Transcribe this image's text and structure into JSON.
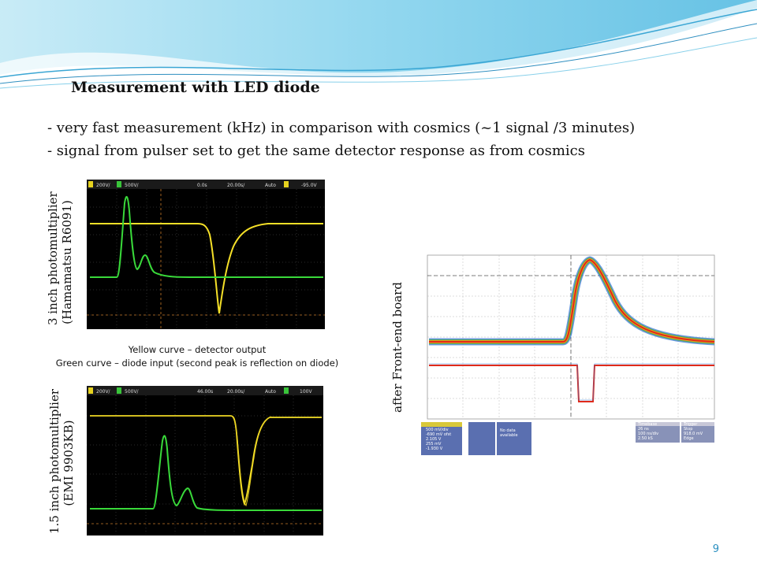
{
  "title": "Measurement with LED diode",
  "bullets": [
    "- very fast measurement (kHz) in comparison with cosmics (~1 signal /3 minutes)",
    "- signal from pulser set to get the same detector response as from cosmics"
  ],
  "scope_top": {
    "label_line1": "3 inch photomultiplier",
    "label_line2": "(Hamamatsu R6091)",
    "status": [
      "200V/",
      "500V/",
      "0.0s",
      "20.00s/",
      "Auto",
      "-95.0V"
    ]
  },
  "scope_bottom": {
    "label_line1": "1.5 inch photomultiplier",
    "label_line2": "(EMI 9903KB)",
    "status": [
      "200V/",
      "500V/",
      "46.00s",
      "20.00s/",
      "Auto",
      "100V"
    ]
  },
  "caption": {
    "line1": "Yellow curve – detector output",
    "line2": "Green curve – diode input (second peak is reflection on diode)"
  },
  "frontend": {
    "label": "after Front-end board",
    "box1": [
      "500 mV/div",
      "-690 mV ofst",
      "2.105 V",
      "255 mV",
      "-1.930 V"
    ],
    "box2": [
      "No data",
      "available"
    ],
    "timebase": [
      "Timebase",
      "26 ns",
      "100 ns/div",
      "2.50 kS",
      "2.5 GS/s"
    ],
    "trigger": [
      "Trigger",
      "Stop",
      "918.0 mV",
      "Edge",
      "Positive"
    ]
  },
  "colors": {
    "yellow_trace": "#f5e028",
    "green_trace": "#39d93a",
    "accent_wave": "#6cc7e6",
    "page_number": "#2a8fc0"
  },
  "page_number": "9"
}
